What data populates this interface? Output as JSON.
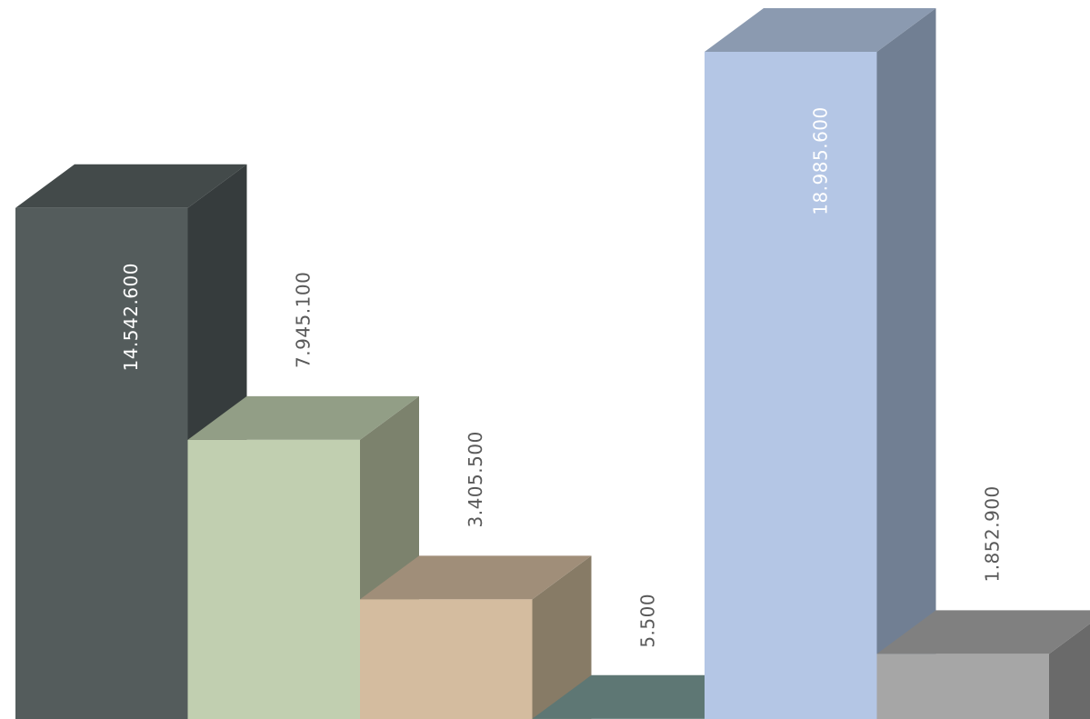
{
  "chart_data": {
    "type": "bar",
    "style": "3d-columns",
    "categories": [
      "",
      "",
      "",
      "",
      "",
      ""
    ],
    "values": [
      14542600,
      7945100,
      3405500,
      5500,
      18985600,
      1852900
    ],
    "value_labels": [
      "14.542.600",
      "7.945.100",
      "3.405.500",
      "5.500",
      "18.985.600",
      "1.852.900"
    ],
    "bar_colors": [
      {
        "front": "#545c5c",
        "top": "#434a4a",
        "side": "#363c3d"
      },
      {
        "front": "#c1cfb0",
        "top": "#929e86",
        "side": "#7c826d"
      },
      {
        "front": "#d4bc9f",
        "top": "#a08e79",
        "side": "#877b66"
      },
      {
        "front": "#6a8b88",
        "top": "#5e7774",
        "side": "#4f6563"
      },
      {
        "front": "#b4c6e5",
        "top": "#8b9ab0",
        "side": "#717f93"
      },
      {
        "front": "#a6a6a6",
        "top": "#808080",
        "side": "#6a6a6a"
      }
    ],
    "label_colors": {
      "inside": "#ffffff",
      "outside": "#595959"
    },
    "title": "",
    "xlabel": "",
    "ylabel": "",
    "grid": false,
    "legend": "none"
  }
}
